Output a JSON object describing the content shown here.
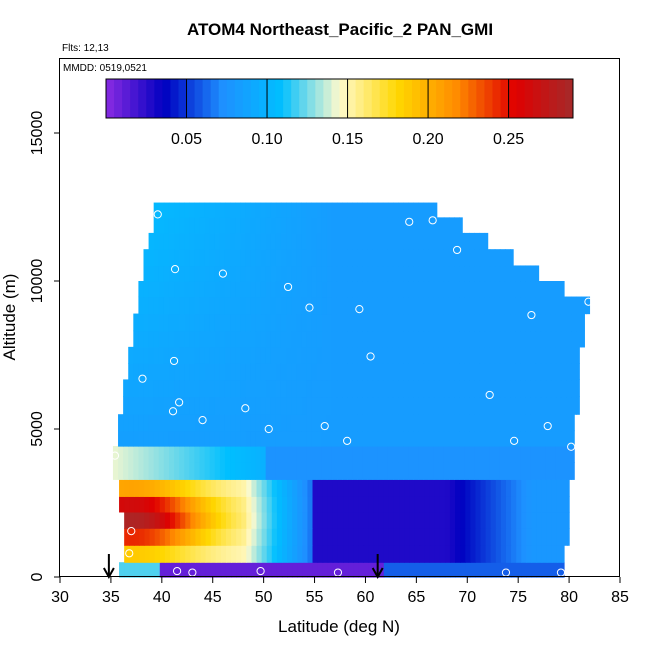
{
  "chart_data": {
    "type": "heatmap",
    "title": "ATOM4 Northeast_Pacific_2 PAN_GMI",
    "annotations": [
      "Flts: 12,13",
      "MMDD: 0519,0521"
    ],
    "xlabel": "Latitude (deg N)",
    "ylabel": "Altitude (m)",
    "xlim": [
      30,
      85
    ],
    "ylim": [
      0,
      17500
    ],
    "xticks": [
      30,
      35,
      40,
      45,
      50,
      55,
      60,
      65,
      70,
      75,
      80,
      85
    ],
    "yticks": [
      0,
      5000,
      10000,
      15000
    ],
    "grid": false,
    "colorbar": {
      "orientation": "horizontal",
      "position": "top-inside",
      "range": [
        0.0,
        0.29
      ],
      "ticks": [
        0.05,
        0.1,
        0.15,
        0.2,
        0.25
      ],
      "tick_labels": [
        "0.05",
        "0.10",
        "0.15",
        "0.20",
        "0.25"
      ],
      "colors": [
        "#8a2be2",
        "#0000c0",
        "#1e90ff",
        "#00bfff",
        "#fffacd",
        "#ffd700",
        "#ff8c00",
        "#e00000",
        "#a52a2a"
      ]
    },
    "altitude_levels": [
      200,
      800,
      1350,
      1950,
      2450,
      3000,
      3600,
      4150,
      4700,
      5200,
      5800,
      6400,
      6950,
      7500,
      8050,
      8600,
      9200,
      9750,
      10250,
      10800,
      11350,
      11900,
      12400
    ],
    "level_lat_ranges": [
      [
        35.8,
        79.5
      ],
      [
        36.3,
        79.5
      ],
      [
        36.3,
        80.0
      ],
      [
        36.3,
        80.0
      ],
      [
        35.8,
        80.0
      ],
      [
        35.8,
        80.0
      ],
      [
        35.2,
        80.5
      ],
      [
        35.2,
        80.5
      ],
      [
        35.7,
        80.5
      ],
      [
        35.7,
        80.5
      ],
      [
        36.2,
        81.0
      ],
      [
        36.2,
        81.0
      ],
      [
        36.7,
        81.0
      ],
      [
        36.7,
        81.0
      ],
      [
        37.2,
        81.5
      ],
      [
        37.2,
        81.5
      ],
      [
        37.7,
        82.0
      ],
      [
        37.7,
        79.5
      ],
      [
        38.2,
        77.0
      ],
      [
        38.2,
        74.5
      ],
      [
        38.7,
        72.0
      ],
      [
        39.2,
        69.5
      ],
      [
        39.2,
        67.0
      ]
    ],
    "observations": {
      "lat": [
        35.4,
        37.0,
        36.8,
        41.5,
        43.0,
        49.7,
        57.3,
        73.8,
        79.2,
        41.1,
        41.7,
        44.0,
        48.2,
        50.5,
        56.0,
        58.2,
        74.6,
        77.9,
        80.2,
        38.1,
        41.2,
        60.5,
        72.2,
        52.4,
        54.5,
        59.4,
        76.3,
        81.9,
        41.3,
        46.0,
        69.0,
        39.6,
        64.3,
        66.6
      ],
      "alt": [
        4100,
        1550,
        800,
        200,
        150,
        200,
        150,
        150,
        150,
        5600,
        5900,
        5300,
        5700,
        5000,
        5100,
        4600,
        4600,
        5100,
        4400,
        6700,
        7300,
        7450,
        6150,
        9800,
        9100,
        9050,
        8850,
        9300,
        10400,
        10250,
        11050,
        12250,
        12000,
        12050
      ]
    },
    "arrows_lat": [
      34.8,
      61.2
    ]
  }
}
